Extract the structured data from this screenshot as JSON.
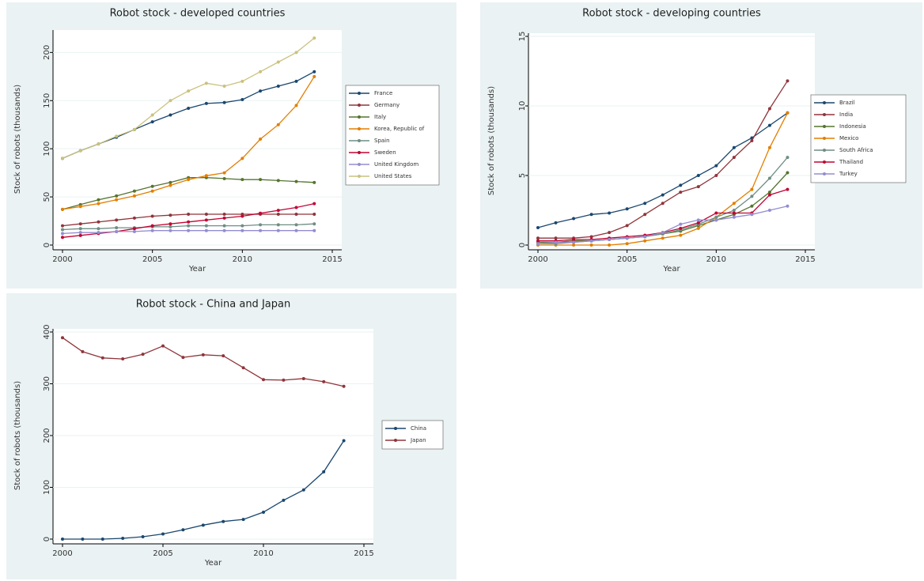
{
  "chart_data": [
    {
      "type": "line",
      "title": "Robot stock - developed countries",
      "x_label": "Year",
      "y_label": "Stock of robots (thousands)",
      "x": [
        2000,
        2001,
        2002,
        2003,
        2004,
        2005,
        2006,
        2007,
        2008,
        2009,
        2010,
        2011,
        2012,
        2013,
        2014
      ],
      "xlim": [
        2000,
        2015
      ],
      "xticks": [
        2000,
        2005,
        2010,
        2015
      ],
      "ylim": [
        0,
        220
      ],
      "yticks": [
        0,
        50,
        100,
        150,
        200
      ],
      "series": [
        {
          "name": "France",
          "color": "#1a476f",
          "values": [
            90,
            98,
            105,
            112,
            120,
            128,
            135,
            142,
            147,
            148,
            151,
            160,
            165,
            170,
            180
          ]
        },
        {
          "name": "Germany",
          "color": "#90353b",
          "values": [
            20,
            22,
            24,
            26,
            28,
            30,
            31,
            32,
            32,
            32,
            32,
            32,
            32,
            32,
            32
          ]
        },
        {
          "name": "Italy",
          "color": "#55752f",
          "values": [
            37,
            42,
            47,
            51,
            56,
            61,
            65,
            70,
            70,
            69,
            68,
            68,
            67,
            66,
            65
          ]
        },
        {
          "name": "Korea, Republic of",
          "color": "#e37e00",
          "values": [
            37,
            40,
            43,
            47,
            51,
            56,
            62,
            68,
            72,
            75,
            90,
            110,
            125,
            145,
            175
          ]
        },
        {
          "name": "Spain",
          "color": "#6e8e84",
          "values": [
            16,
            17,
            17,
            18,
            18,
            19,
            19,
            20,
            20,
            20,
            20,
            21,
            21,
            21,
            22
          ]
        },
        {
          "name": "Sweden",
          "color": "#c10534",
          "values": [
            8,
            10,
            12,
            14,
            17,
            20,
            22,
            24,
            26,
            28,
            30,
            33,
            36,
            39,
            43
          ]
        },
        {
          "name": "United Kingdom",
          "color": "#938dd2",
          "values": [
            12,
            13,
            13,
            14,
            14,
            15,
            15,
            15,
            15,
            15,
            15,
            15,
            15,
            15,
            15
          ]
        },
        {
          "name": "United States",
          "color": "#cac27e",
          "values": [
            90,
            98,
            105,
            113,
            120,
            135,
            150,
            160,
            168,
            165,
            170,
            180,
            190,
            200,
            215
          ]
        }
      ]
    },
    {
      "type": "line",
      "title": "Robot stock - developing countries",
      "x_label": "Year",
      "y_label": "Stock of robots (thousands)",
      "x": [
        2000,
        2001,
        2002,
        2003,
        2004,
        2005,
        2006,
        2007,
        2008,
        2009,
        2010,
        2011,
        2012,
        2013,
        2014
      ],
      "xlim": [
        2000,
        2015
      ],
      "xticks": [
        2000,
        2005,
        2010,
        2015
      ],
      "ylim": [
        0,
        15
      ],
      "yticks": [
        0,
        5,
        10,
        15
      ],
      "series": [
        {
          "name": "Brazil",
          "color": "#1a476f",
          "values": [
            1.25,
            1.6,
            1.9,
            2.2,
            2.3,
            2.6,
            3.0,
            3.6,
            4.3,
            5.0,
            5.7,
            7.0,
            7.7,
            8.6,
            9.5
          ]
        },
        {
          "name": "India",
          "color": "#90353b",
          "values": [
            0.5,
            0.5,
            0.5,
            0.6,
            0.9,
            1.4,
            2.2,
            3.0,
            3.8,
            4.2,
            5.0,
            6.3,
            7.5,
            9.8,
            11.8
          ]
        },
        {
          "name": "Indonesia",
          "color": "#55752f",
          "values": [
            0.2,
            0.2,
            0.3,
            0.3,
            0.4,
            0.5,
            0.6,
            0.8,
            1.0,
            1.4,
            1.8,
            2.2,
            2.8,
            3.8,
            5.2
          ]
        },
        {
          "name": "Mexico",
          "color": "#e37e00",
          "values": [
            0,
            0,
            0,
            0,
            0,
            0.1,
            0.3,
            0.5,
            0.7,
            1.2,
            2.0,
            3.0,
            4.0,
            7.0,
            9.5
          ]
        },
        {
          "name": "South Africa",
          "color": "#6e8e84",
          "values": [
            0.1,
            0.1,
            0.2,
            0.3,
            0.4,
            0.5,
            0.6,
            0.8,
            1.1,
            1.5,
            2.0,
            2.5,
            3.5,
            4.8,
            6.3
          ]
        },
        {
          "name": "Thailand",
          "color": "#c10534",
          "values": [
            0.3,
            0.3,
            0.4,
            0.4,
            0.5,
            0.6,
            0.7,
            0.9,
            1.2,
            1.6,
            2.3,
            2.3,
            2.3,
            3.6,
            4.0
          ]
        },
        {
          "name": "Turkey",
          "color": "#938dd2",
          "values": [
            0.1,
            0.2,
            0.2,
            0.3,
            0.4,
            0.5,
            0.6,
            0.9,
            1.5,
            1.8,
            1.8,
            2.0,
            2.2,
            2.5,
            2.8
          ]
        }
      ]
    },
    {
      "type": "line",
      "title": "Robot stock - China and Japan",
      "x_label": "Year",
      "y_label": "Stock of robots (thousands)",
      "x": [
        2000,
        2001,
        2002,
        2003,
        2004,
        2005,
        2006,
        2007,
        2008,
        2009,
        2010,
        2011,
        2012,
        2013,
        2014
      ],
      "xlim": [
        2000,
        2015
      ],
      "xticks": [
        2000,
        2005,
        2010,
        2015
      ],
      "ylim": [
        0,
        400
      ],
      "yticks": [
        0,
        100,
        200,
        300,
        400
      ],
      "series": [
        {
          "name": "China",
          "color": "#1a476f",
          "values": [
            0,
            0,
            0,
            1.5,
            4.6,
            10,
            18,
            27,
            34,
            38,
            52,
            75,
            95,
            130,
            190
          ]
        },
        {
          "name": "Japan",
          "color": "#90353b",
          "values": [
            389,
            362,
            350,
            348,
            357,
            373,
            351,
            356,
            354,
            331,
            308,
            307,
            310,
            304,
            295
          ]
        }
      ]
    }
  ]
}
